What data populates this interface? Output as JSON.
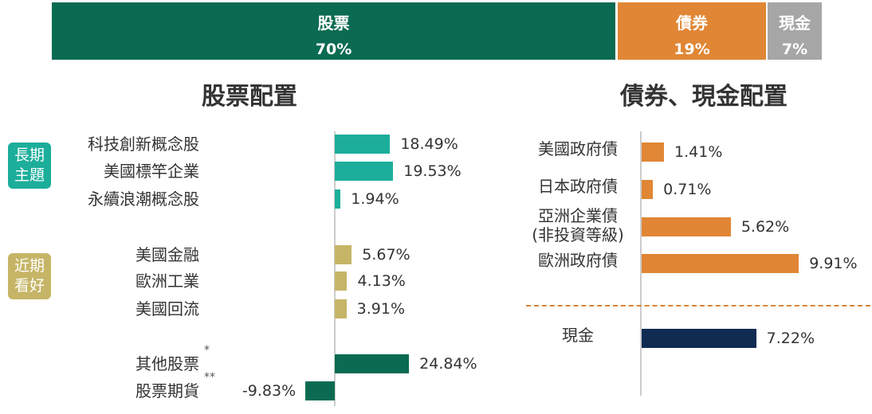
{
  "chart_data": [
    {
      "type": "bar",
      "subtype": "stacked-horizontal",
      "categories": [
        "股票",
        "債券",
        "現金"
      ],
      "labels": [
        "70%",
        "19%",
        "7%"
      ],
      "values": [
        70,
        19,
        7
      ],
      "colors": [
        "#0a6b52",
        "#e08634",
        "#a6a6a6"
      ]
    },
    {
      "type": "bar",
      "orientation": "horizontal",
      "title": "股票配置",
      "groups": [
        {
          "name": "長期\n主題",
          "color": "#1cae9b"
        },
        {
          "name": "近期\n看好",
          "color": "#c6b566"
        },
        {
          "name": "",
          "color": "#0a6b52"
        }
      ],
      "categories": [
        "科技創新概念股",
        "美國標竿企業",
        "永續浪潮概念股",
        "美國金融",
        "歐洲工業",
        "美國回流",
        "其他股票",
        "股票期貨"
      ],
      "values": [
        18.49,
        19.53,
        1.94,
        5.67,
        4.13,
        3.91,
        24.84,
        -9.83
      ],
      "labels": [
        "18.49%",
        "19.53%",
        "1.94%",
        "5.67%",
        "4.13%",
        "3.91%",
        "24.84%",
        "-9.83%"
      ],
      "group_index": [
        0,
        0,
        0,
        1,
        1,
        1,
        2,
        2
      ],
      "marks": [
        "",
        "",
        "",
        "",
        "",
        "",
        "*",
        "**"
      ]
    },
    {
      "type": "bar",
      "orientation": "horizontal",
      "title": "債券、現金配置",
      "categories": [
        "美國政府債",
        "日本政府債",
        "亞洲企業債\n(非投資等級)",
        "歐洲政府債",
        "現金"
      ],
      "values": [
        1.41,
        0.71,
        5.62,
        9.91,
        7.22
      ],
      "labels": [
        "1.41%",
        "0.71%",
        "5.62%",
        "9.91%",
        "7.22%"
      ],
      "colors": [
        "#e08634",
        "#e08634",
        "#e08634",
        "#e08634",
        "#0f2b52"
      ],
      "separator_after_index": 3
    }
  ]
}
